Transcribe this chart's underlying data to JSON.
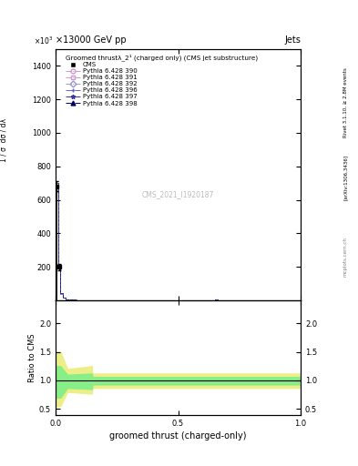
{
  "title_top": "×13000 GeV pp",
  "title_right": "Jets",
  "plot_title": "Groomed thrustλ_2¹ (charged only) (CMS jet substructure)",
  "xlabel": "groomed thrust (charged-only)",
  "ylabel_main": "$\\frac{1}{\\sigma}\\frac{d\\sigma}{d\\lambda}$",
  "ylabel_ratio": "Ratio to CMS",
  "watermark": "CMS_2021_I1920187",
  "right_label_top": "Rivet 3.1.10, ≥ 2.8M events",
  "right_label_bottom": "[arXiv:1306.3436]",
  "mcplots_label": "mcplots.cern.ch",
  "legend_entries": [
    {
      "label": "CMS",
      "marker": "s",
      "color": "black",
      "linestyle": "none",
      "fillstyle": "full"
    },
    {
      "label": "Pythia 6.428 390",
      "marker": "o",
      "color": "#cc99cc",
      "linestyle": "-.",
      "fillstyle": "none"
    },
    {
      "label": "Pythia 6.428 391",
      "marker": "s",
      "color": "#cc99cc",
      "linestyle": "-.",
      "fillstyle": "none"
    },
    {
      "label": "Pythia 6.428 392",
      "marker": "D",
      "color": "#9999cc",
      "linestyle": "-.",
      "fillstyle": "none"
    },
    {
      "label": "Pythia 6.428 396",
      "marker": "+",
      "color": "#6666aa",
      "linestyle": "-.",
      "fillstyle": "none"
    },
    {
      "label": "Pythia 6.428 397",
      "marker": "*",
      "color": "#3333aa",
      "linestyle": "-.",
      "fillstyle": "none"
    },
    {
      "label": "Pythia 6.428 398",
      "marker": "^",
      "color": "#000066",
      "linestyle": "-.",
      "fillstyle": "full"
    }
  ],
  "main_ylim": [
    0,
    1500
  ],
  "main_yticks": [
    200,
    400,
    600,
    800,
    1000,
    1200,
    1400
  ],
  "ratio_ylim": [
    0.4,
    2.4
  ],
  "ratio_yticks": [
    0.5,
    1.0,
    1.5,
    2.0
  ],
  "xlim": [
    0,
    1
  ],
  "xticks": [
    0,
    0.5,
    1.0
  ],
  "data_color": "black",
  "band_yellow": "#eeee88",
  "band_green": "#88ee88",
  "ratio_line": 1.0,
  "background": "white"
}
